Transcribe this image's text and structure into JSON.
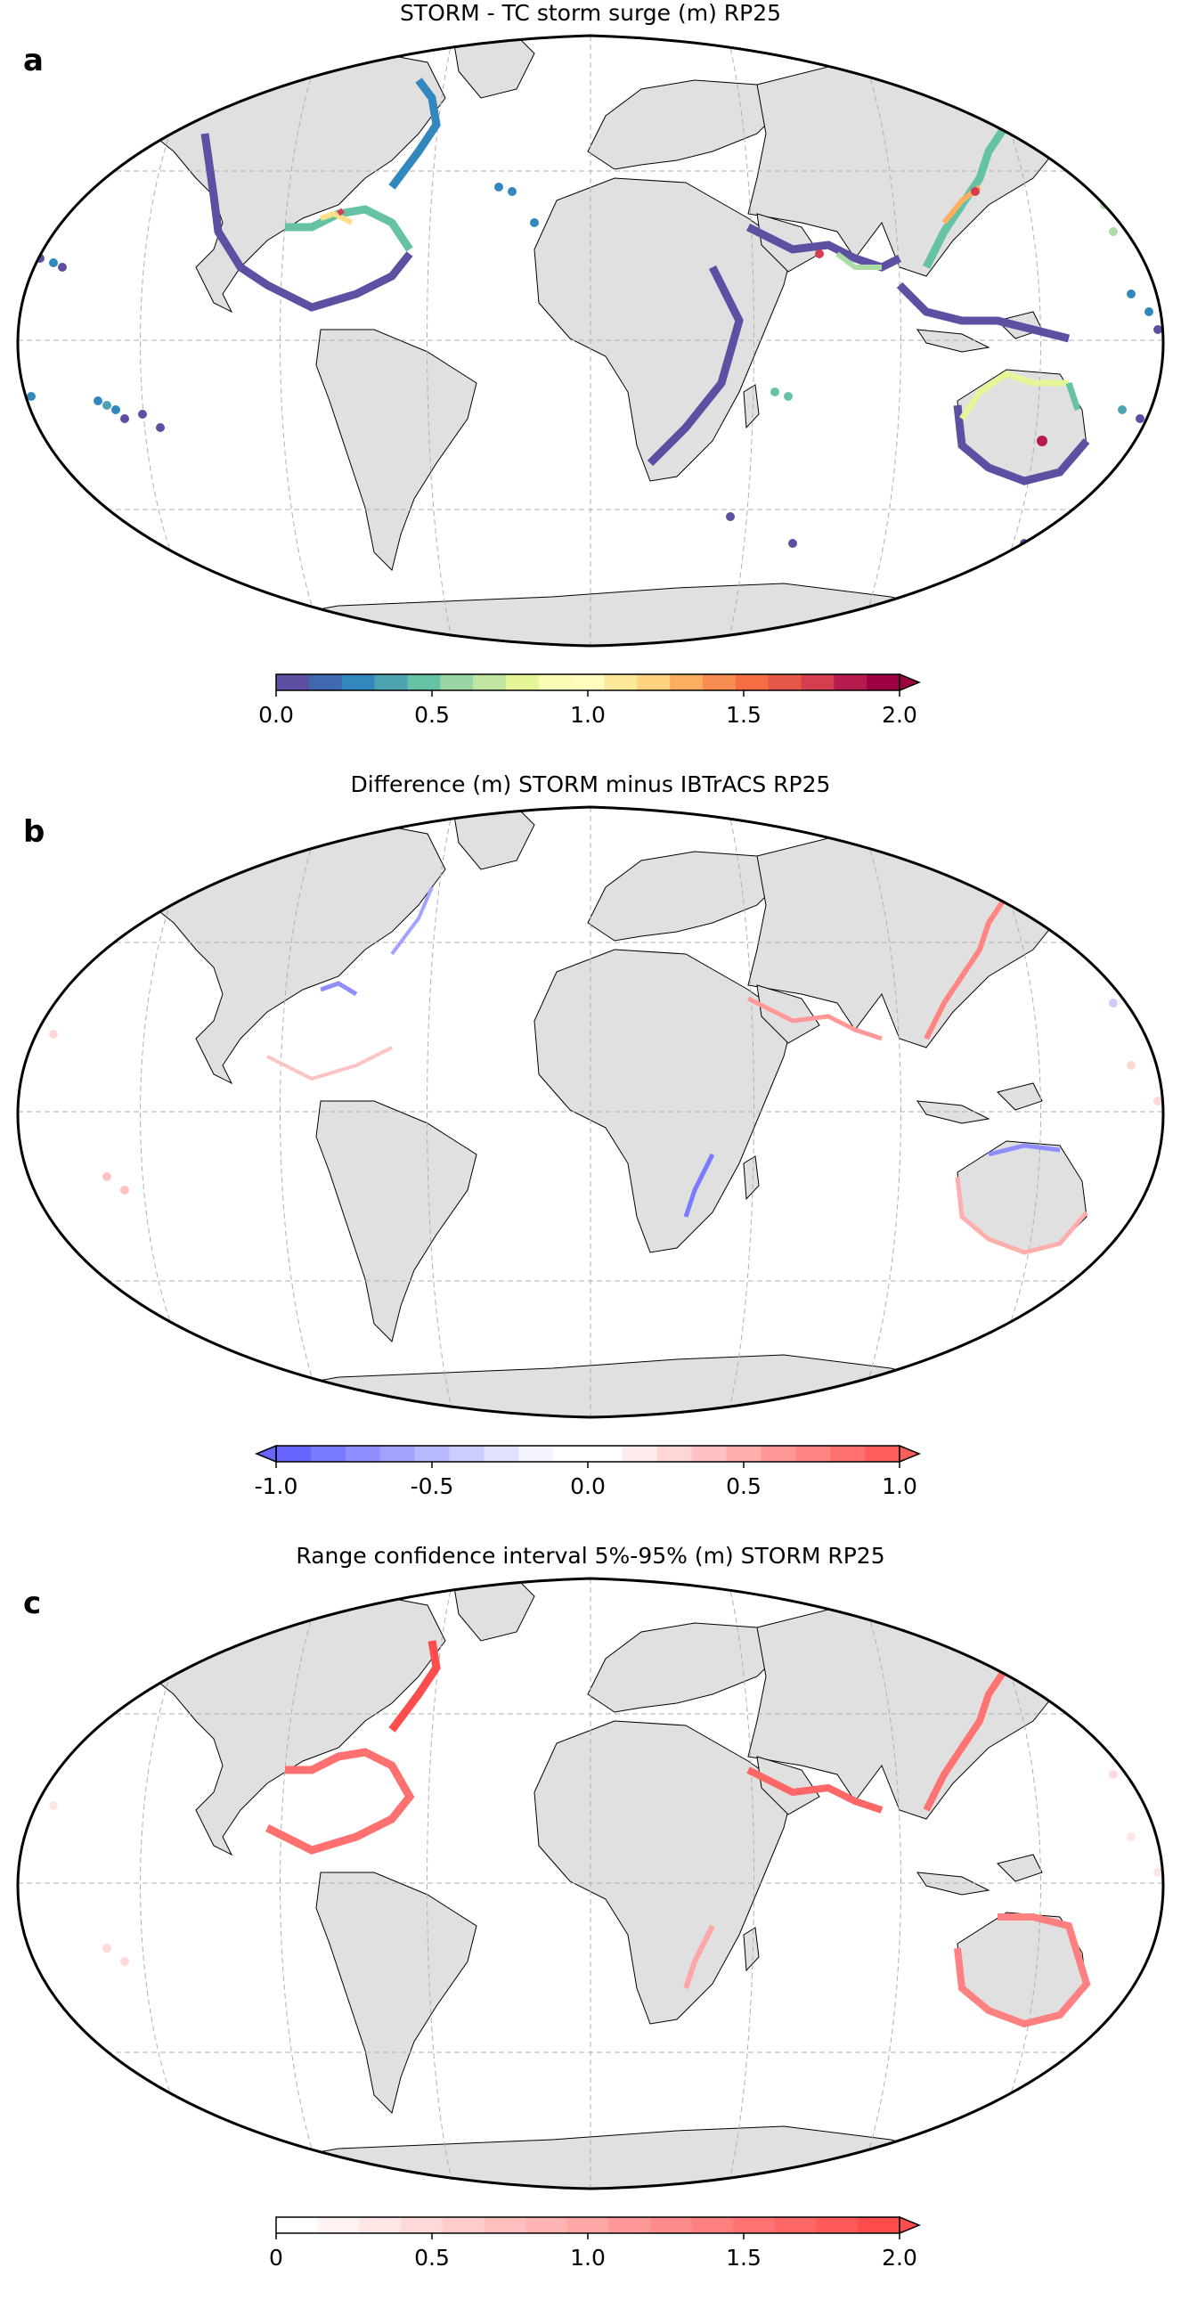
{
  "panels": [
    {
      "letter": "a",
      "title": "STORM - TC storm surge (m) RP25",
      "colorbar": {
        "colors": [
          "#5e4fa2",
          "#3f68ae",
          "#3288bd",
          "#4ea3b1",
          "#66c2a5",
          "#99d5a4",
          "#bfe5a0",
          "#e6f598",
          "#f8fcb4",
          "#fffebe",
          "#fee99b",
          "#fdd380",
          "#fdae61",
          "#f88d52",
          "#f46d43",
          "#e55749",
          "#d53e4f",
          "#b51b4d",
          "#9e0142"
        ],
        "extend": "max",
        "ticks": [
          "0.0",
          "0.5",
          "1.0",
          "1.5",
          "2.0"
        ]
      }
    },
    {
      "letter": "b",
      "title": "Difference (m) STORM minus IBTrACS RP25",
      "colorbar": {
        "colors": [
          "#6666ff",
          "#7a7aff",
          "#8f8fff",
          "#a3a3ff",
          "#b8b8ff",
          "#ccccff",
          "#e0e0ff",
          "#f4f4ff",
          "#ffffff",
          "#ffffff",
          "#ffebeb",
          "#ffd6d6",
          "#ffc2c2",
          "#ffadad",
          "#ff9999",
          "#ff8585",
          "#ff7070",
          "#ff5c5c"
        ],
        "extend": "both",
        "ticks": [
          "-1.0",
          "-0.5",
          "0.0",
          "0.5",
          "1.0"
        ]
      }
    },
    {
      "letter": "c",
      "title": "Range confidence interval 5%-95% (m) STORM RP25",
      "colorbar": {
        "colors": [
          "#ffffff",
          "#fff2f2",
          "#ffe6e6",
          "#ffd9d9",
          "#ffcccc",
          "#ffbfbf",
          "#ffb3b3",
          "#ffa6a6",
          "#ff9999",
          "#ff8c8c",
          "#ff8080",
          "#ff7373",
          "#ff6666",
          "#ff5959",
          "#ff4d4d"
        ],
        "extend": "max",
        "ticks": [
          "0",
          "0.5",
          "1.0",
          "1.5",
          "2.0"
        ]
      }
    }
  ]
}
